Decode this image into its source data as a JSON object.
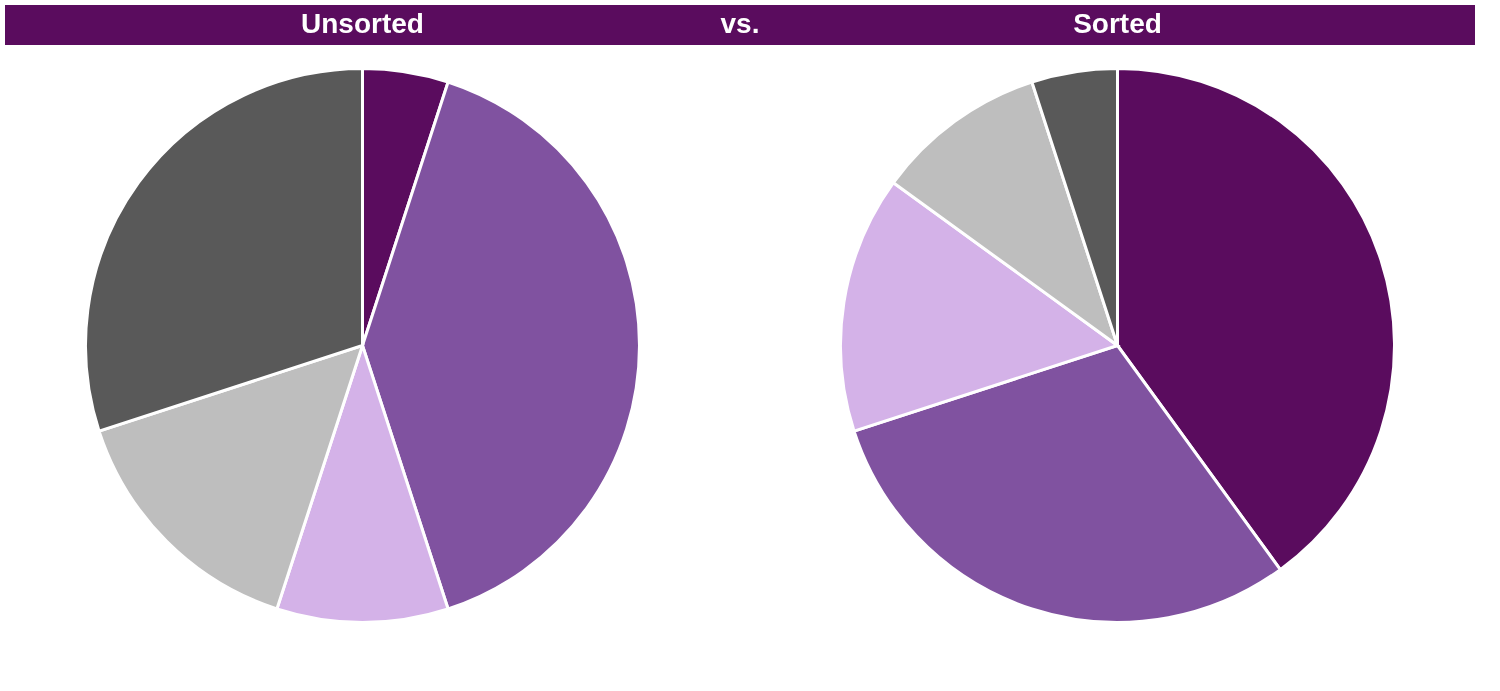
{
  "chart_data": [
    {
      "type": "pie",
      "title": "Unsorted",
      "annotations": [
        "vs."
      ],
      "categories": [
        null,
        null,
        null,
        null,
        null
      ],
      "values": [
        5,
        40,
        10,
        15,
        30
      ],
      "colors": [
        "#5a0c5e",
        "#8052a0",
        "#d4b2e8",
        "#bebebe",
        "#595959"
      ],
      "legend": false
    },
    {
      "type": "pie",
      "title": "Sorted",
      "categories": [
        null,
        null,
        null,
        null,
        null
      ],
      "values": [
        40,
        30,
        15,
        10,
        5
      ],
      "colors": [
        "#5a0c5e",
        "#8052a0",
        "#d4b2e8",
        "#bebebe",
        "#595959"
      ],
      "legend": false
    }
  ]
}
